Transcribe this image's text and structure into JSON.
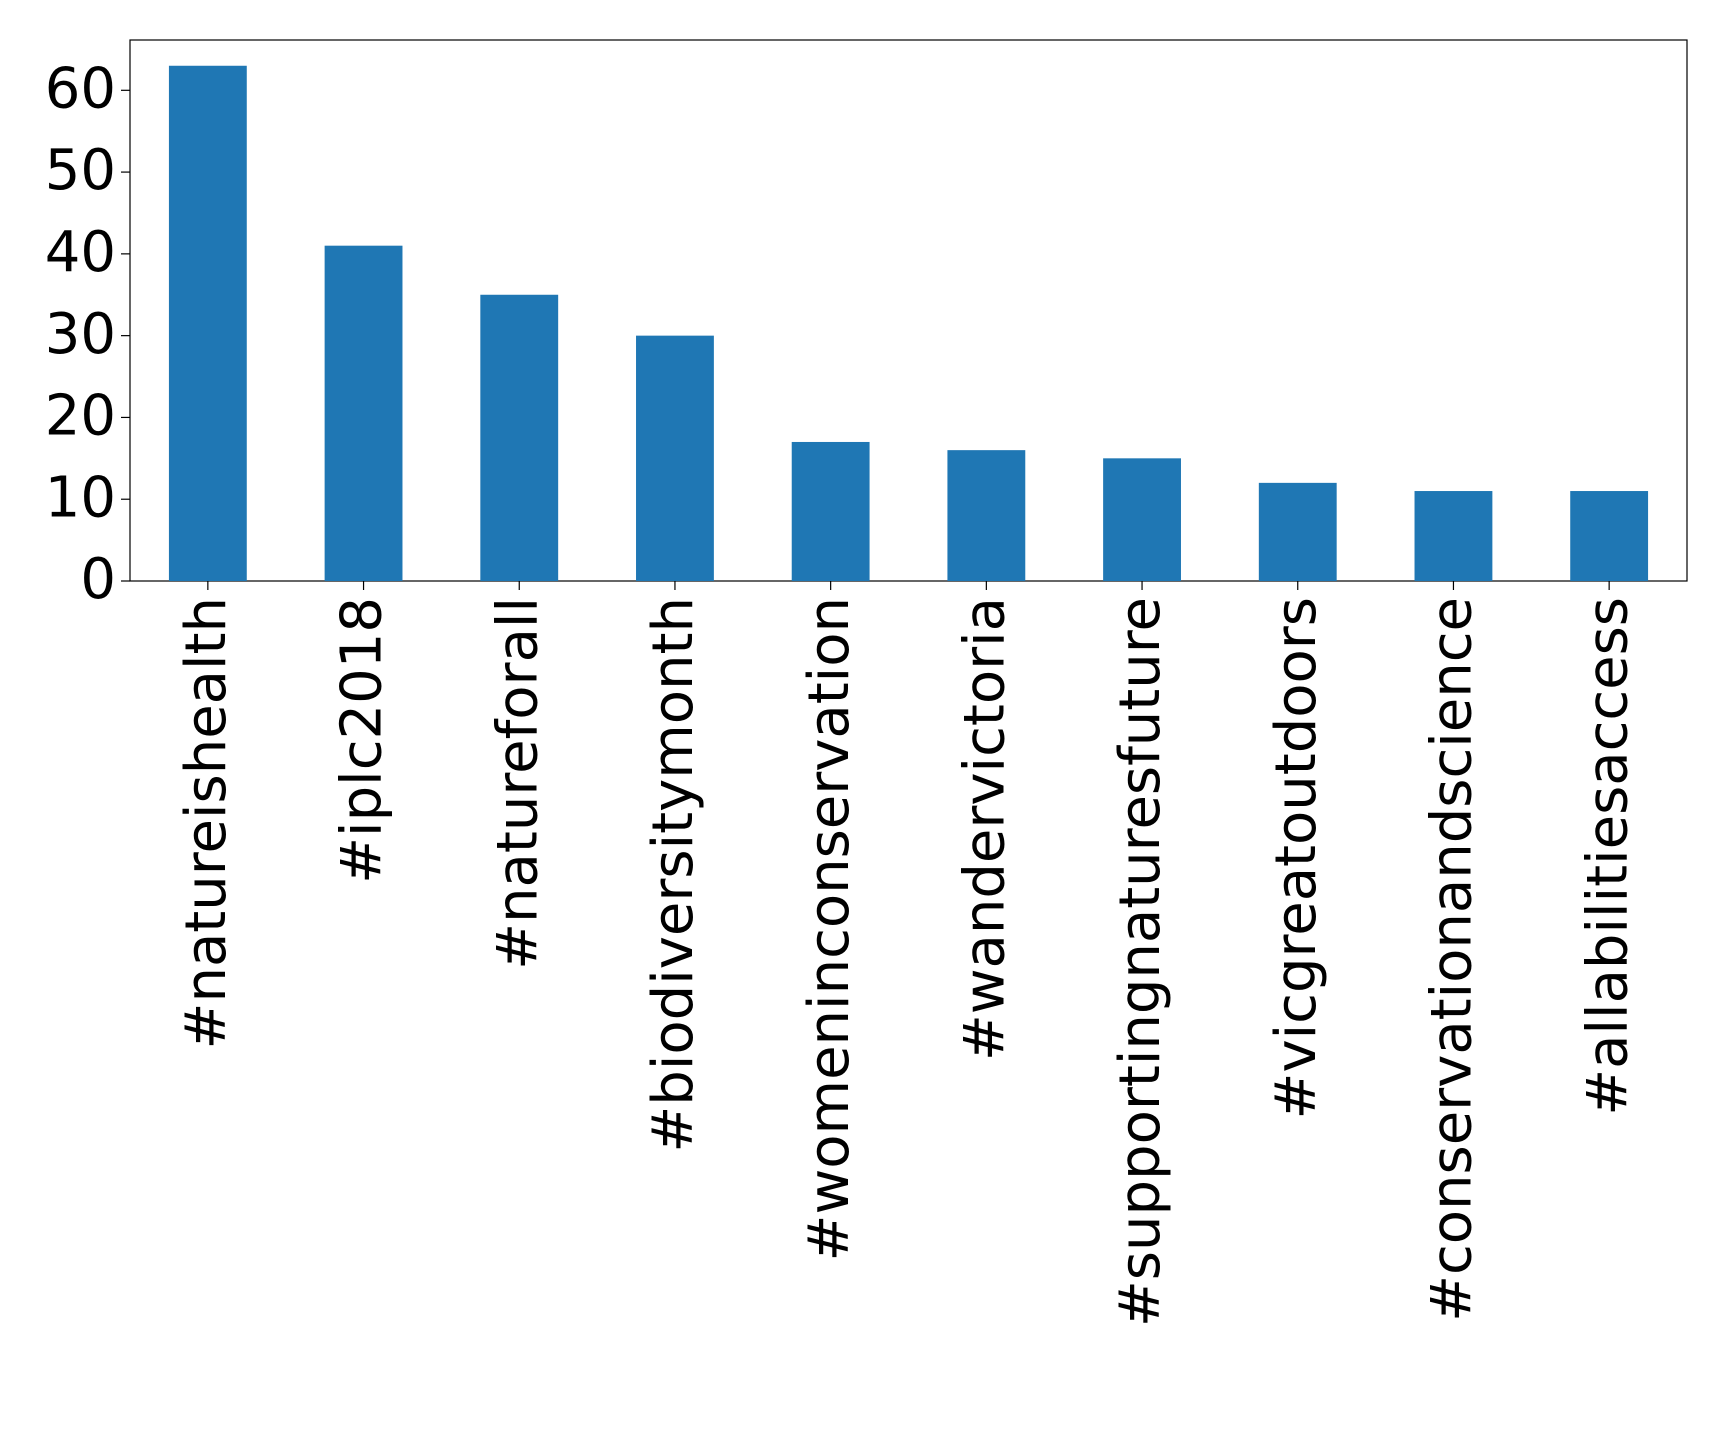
{
  "chart_data": {
    "type": "bar",
    "categories": [
      "#natureishealth",
      "#iplc2018",
      "#natureforall",
      "#biodiversitymonth",
      "#womeninconservation",
      "#wandervictoria",
      "#supportingnaturesfuture",
      "#vicgreatoutdoors",
      "#conservationandscience",
      "#allabilitiesaccess"
    ],
    "values": [
      63,
      41,
      35,
      30,
      17,
      16,
      15,
      12,
      11,
      11
    ],
    "color": "#1f77b4",
    "ylim": [
      0,
      66.15
    ],
    "yticks": [
      0,
      10,
      20,
      30,
      40,
      50,
      60
    ],
    "grid": false
  }
}
